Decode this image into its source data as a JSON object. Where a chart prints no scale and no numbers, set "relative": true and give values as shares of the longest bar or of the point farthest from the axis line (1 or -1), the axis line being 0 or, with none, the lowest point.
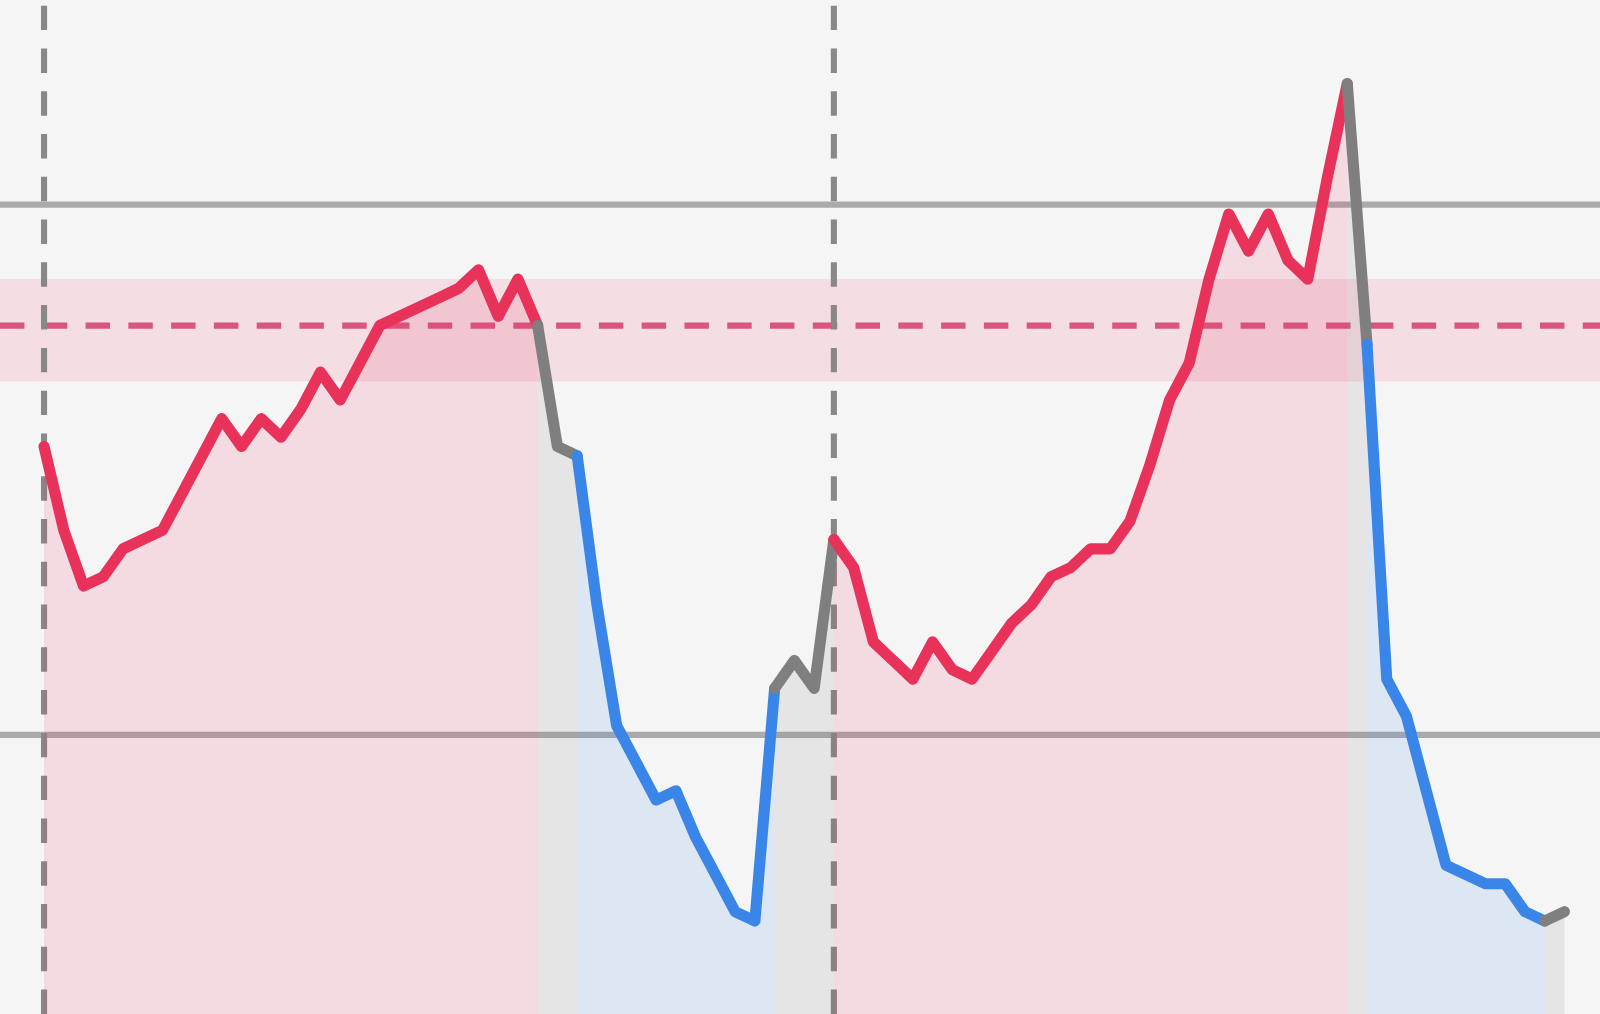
{
  "chart_data": {
    "type": "area",
    "relative": true,
    "categories": [
      null,
      null,
      null,
      null,
      null,
      null,
      null,
      null,
      null,
      null,
      null,
      null,
      null,
      null,
      null,
      null,
      null,
      null,
      null,
      null,
      null,
      null,
      null,
      null,
      null,
      null,
      null,
      null,
      null,
      null,
      null,
      null,
      null,
      null,
      null,
      null,
      null,
      null,
      null,
      null,
      null,
      null,
      null,
      null,
      null,
      null,
      null,
      null,
      null,
      null,
      null,
      null,
      null,
      null,
      null,
      null,
      null,
      null,
      null,
      null,
      null,
      null,
      null,
      null,
      null,
      null,
      null,
      null,
      null,
      null,
      null,
      null,
      null,
      null,
      null,
      null,
      null,
      null
    ],
    "series": [
      {
        "color": "#e8325a",
        "values": [
          0.61,
          0.52,
          0.46,
          0.47,
          0.5,
          0.51,
          0.52,
          0.56,
          0.6,
          0.64,
          0.61,
          0.64,
          0.62,
          0.65,
          0.69,
          0.66,
          0.7,
          0.74,
          0.75,
          0.76,
          0.77,
          0.78,
          0.8,
          0.75,
          0.79,
          0.74,
          null,
          null,
          null,
          null,
          null,
          null,
          null,
          null,
          null,
          null,
          null,
          null,
          null,
          null,
          null,
          null,
          null,
          null,
          null,
          null,
          null,
          null,
          null,
          null,
          null,
          null,
          null,
          null,
          null,
          null,
          null,
          null,
          null,
          null,
          null,
          null,
          null,
          null,
          null,
          null,
          null,
          null,
          null,
          null,
          null,
          null,
          null,
          null,
          null,
          null,
          null,
          null
        ]
      },
      {
        "color": "#7f7f7f",
        "values": [
          null,
          null,
          null,
          null,
          null,
          null,
          null,
          null,
          null,
          null,
          null,
          null,
          null,
          null,
          null,
          null,
          null,
          null,
          null,
          null,
          null,
          null,
          null,
          null,
          null,
          0.74,
          0.61,
          0.6,
          null,
          null,
          null,
          null,
          null,
          null,
          null,
          null,
          null,
          null,
          null,
          null,
          null,
          null,
          null,
          null,
          null,
          null,
          null,
          null,
          null,
          null,
          null,
          null,
          null,
          null,
          null,
          null,
          null,
          null,
          null,
          null,
          null,
          null,
          null,
          null,
          null,
          null,
          null,
          null,
          null,
          null,
          null,
          null,
          null,
          null,
          null,
          null,
          null,
          null
        ]
      },
      {
        "color": "#3a86e8",
        "values": [
          null,
          null,
          null,
          null,
          null,
          null,
          null,
          null,
          null,
          null,
          null,
          null,
          null,
          null,
          null,
          null,
          null,
          null,
          null,
          null,
          null,
          null,
          null,
          null,
          null,
          null,
          null,
          0.6,
          0.44,
          0.31,
          0.27,
          0.23,
          0.24,
          0.19,
          0.15,
          0.11,
          0.1,
          0.35,
          null,
          null,
          null,
          null,
          null,
          null,
          null,
          null,
          null,
          null,
          null,
          null,
          null,
          null,
          null,
          null,
          null,
          null,
          null,
          null,
          null,
          null,
          null,
          null,
          null,
          null,
          null,
          null,
          null,
          null,
          null,
          null,
          null,
          null,
          null,
          null,
          null,
          null,
          null,
          null
        ]
      },
      {
        "color": "#7f7f7f",
        "values": [
          null,
          null,
          null,
          null,
          null,
          null,
          null,
          null,
          null,
          null,
          null,
          null,
          null,
          null,
          null,
          null,
          null,
          null,
          null,
          null,
          null,
          null,
          null,
          null,
          null,
          null,
          null,
          null,
          null,
          null,
          null,
          null,
          null,
          null,
          null,
          null,
          null,
          0.35,
          0.38,
          0.35,
          0.51,
          null,
          null,
          null,
          null,
          null,
          null,
          null,
          null,
          null,
          null,
          null,
          null,
          null,
          null,
          null,
          null,
          null,
          null,
          null,
          null,
          null,
          null,
          null,
          null,
          null,
          null,
          null,
          null,
          null,
          null,
          null,
          null,
          null,
          null,
          null,
          null,
          null
        ]
      },
      {
        "color": "#e8325a",
        "values": [
          null,
          null,
          null,
          null,
          null,
          null,
          null,
          null,
          null,
          null,
          null,
          null,
          null,
          null,
          null,
          null,
          null,
          null,
          null,
          null,
          null,
          null,
          null,
          null,
          null,
          null,
          null,
          null,
          null,
          null,
          null,
          null,
          null,
          null,
          null,
          null,
          null,
          null,
          null,
          null,
          0.51,
          0.48,
          0.4,
          0.38,
          0.36,
          0.4,
          0.37,
          0.36,
          0.39,
          0.42,
          0.44,
          0.47,
          0.48,
          0.5,
          0.5,
          0.53,
          0.59,
          0.66,
          0.7,
          0.79,
          0.86,
          0.82,
          0.86,
          0.81,
          0.79,
          0.9,
          1.0,
          null,
          null,
          null,
          null,
          null,
          null,
          null,
          null,
          null,
          null,
          null
        ]
      },
      {
        "color": "#7f7f7f",
        "values": [
          null,
          null,
          null,
          null,
          null,
          null,
          null,
          null,
          null,
          null,
          null,
          null,
          null,
          null,
          null,
          null,
          null,
          null,
          null,
          null,
          null,
          null,
          null,
          null,
          null,
          null,
          null,
          null,
          null,
          null,
          null,
          null,
          null,
          null,
          null,
          null,
          null,
          null,
          null,
          null,
          null,
          null,
          null,
          null,
          null,
          null,
          null,
          null,
          null,
          null,
          null,
          null,
          null,
          null,
          null,
          null,
          null,
          null,
          null,
          null,
          null,
          null,
          null,
          null,
          null,
          null,
          1.0,
          0.72,
          null,
          null,
          null,
          null,
          null,
          null,
          null,
          null,
          null,
          null
        ]
      },
      {
        "color": "#3a86e8",
        "values": [
          null,
          null,
          null,
          null,
          null,
          null,
          null,
          null,
          null,
          null,
          null,
          null,
          null,
          null,
          null,
          null,
          null,
          null,
          null,
          null,
          null,
          null,
          null,
          null,
          null,
          null,
          null,
          null,
          null,
          null,
          null,
          null,
          null,
          null,
          null,
          null,
          null,
          null,
          null,
          null,
          null,
          null,
          null,
          null,
          null,
          null,
          null,
          null,
          null,
          null,
          null,
          null,
          null,
          null,
          null,
          null,
          null,
          null,
          null,
          null,
          null,
          null,
          null,
          null,
          null,
          null,
          null,
          0.72,
          0.36,
          0.32,
          0.24,
          0.16,
          0.15,
          0.14,
          0.14,
          0.11,
          0.1,
          null
        ]
      },
      {
        "color": "#7f7f7f",
        "values": [
          null,
          null,
          null,
          null,
          null,
          null,
          null,
          null,
          null,
          null,
          null,
          null,
          null,
          null,
          null,
          null,
          null,
          null,
          null,
          null,
          null,
          null,
          null,
          null,
          null,
          null,
          null,
          null,
          null,
          null,
          null,
          null,
          null,
          null,
          null,
          null,
          null,
          null,
          null,
          null,
          null,
          null,
          null,
          null,
          null,
          null,
          null,
          null,
          null,
          null,
          null,
          null,
          null,
          null,
          null,
          null,
          null,
          null,
          null,
          null,
          null,
          null,
          null,
          null,
          null,
          null,
          null,
          null,
          null,
          null,
          null,
          null,
          null,
          null,
          null,
          null,
          0.1,
          0.11
        ]
      }
    ],
    "ref_lines": [
      {
        "axis": "y",
        "value": 0.87,
        "color": "#aaaaaa",
        "line_style": "solid"
      },
      {
        "axis": "y",
        "value": 0.3,
        "color": "#aaaaaa",
        "line_style": "solid"
      },
      {
        "axis": "y",
        "value": 0.74,
        "color": "#d9577f",
        "line_style": "dashed"
      }
    ],
    "bands": [
      {
        "axis": "y",
        "from": 0.68,
        "to": 0.79,
        "color": "#f4dde3"
      }
    ]
  }
}
